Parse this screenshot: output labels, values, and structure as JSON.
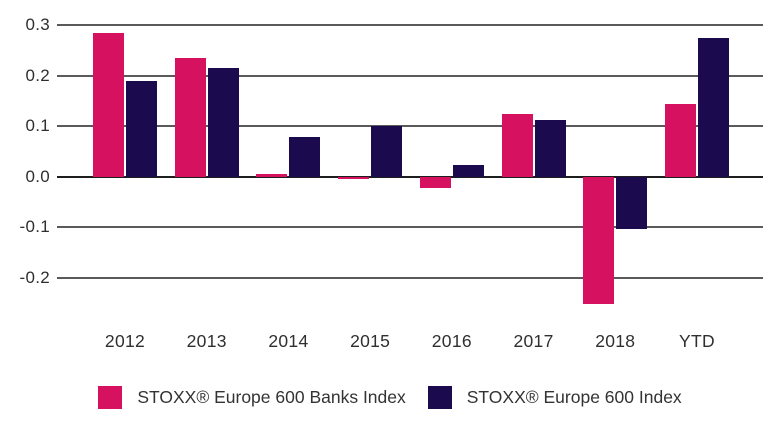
{
  "chart_data": {
    "type": "bar",
    "categories": [
      "2012",
      "2013",
      "2014",
      "2015",
      "2016",
      "2017",
      "2018",
      "YTD"
    ],
    "series": [
      {
        "name": "STOXX® Europe 600 Banks Index",
        "color": "#d6115f",
        "values": [
          0.285,
          0.235,
          0.005,
          -0.004,
          -0.022,
          0.125,
          -0.253,
          0.143
        ]
      },
      {
        "name": "STOXX® Europe 600 Index",
        "color": "#1b0a4e",
        "values": [
          0.19,
          0.215,
          0.078,
          0.1,
          0.023,
          0.112,
          -0.104,
          0.275
        ]
      }
    ],
    "yticks": [
      0.3,
      0.2,
      0.1,
      0,
      -0.1,
      -0.2
    ],
    "ytick_labels": [
      "0.3",
      "0.2",
      "0.1",
      "0.0",
      "-0.1",
      "-0.2"
    ],
    "ylim": [
      -0.28,
      0.33
    ],
    "grid": true,
    "legend_position": "bottom",
    "grid_color": "#5a5a5a",
    "zero_line_color": "#1e1e1e",
    "text_color": "#2f2f2f"
  }
}
